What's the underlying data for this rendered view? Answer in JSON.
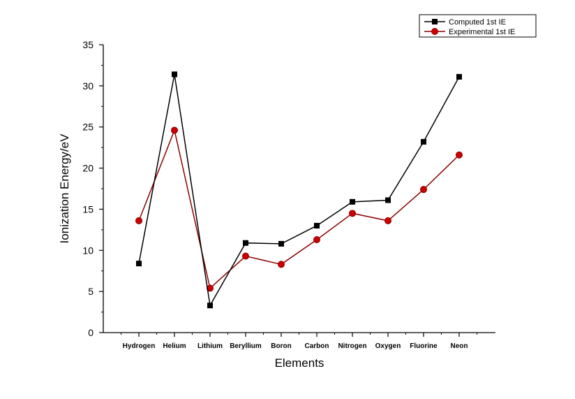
{
  "chart_data": {
    "type": "line",
    "categories": [
      "Hydrogen",
      "Helium",
      "Lithium",
      "Beryllium",
      "Boron",
      "Carbon",
      "Nitrogen",
      "Oxygen",
      "Fluorine",
      "Neon"
    ],
    "series": [
      {
        "name": "Computed 1st IE",
        "color": "#000000",
        "marker": "square",
        "values": [
          8.4,
          31.4,
          3.3,
          10.9,
          10.8,
          13.0,
          15.9,
          16.1,
          23.2,
          31.1
        ]
      },
      {
        "name": "Experimental 1st IE",
        "color": "#8b0000",
        "marker": "circle",
        "values": [
          13.6,
          24.6,
          5.4,
          9.3,
          8.3,
          11.3,
          14.5,
          13.6,
          17.4,
          21.6
        ]
      }
    ],
    "xlabel": "Elements",
    "ylabel": "Ionization Energy/eV",
    "ylim": [
      0,
      35
    ],
    "yticks": [
      0,
      5,
      10,
      15,
      20,
      25,
      30,
      35
    ],
    "grid": false,
    "legend_position": "top-right"
  }
}
